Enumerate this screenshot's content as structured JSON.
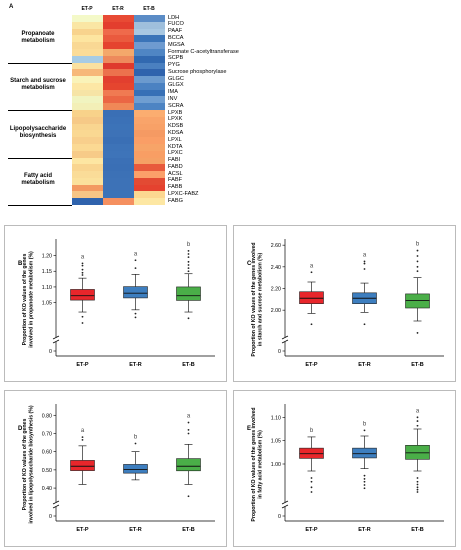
{
  "heatmap": {
    "panel_label": "A",
    "columns": [
      "ET-P",
      "ET-R",
      "ET-B"
    ],
    "genes": [
      "LDH",
      "FUCO",
      "PAAF",
      "BCCA",
      "MGSA",
      "Formate C-acetyltransferase",
      "SCPB",
      "PYG",
      "Sucrose phosphorylase",
      "GLGC",
      "GLGX",
      "IMA",
      "INV",
      "SCRA",
      "LPXB",
      "LPXK",
      "KDSB",
      "KDSA",
      "LPXL",
      "KDTA",
      "LPXC",
      "FABI",
      "FABD",
      "ACSL",
      "FABF",
      "FABB",
      "LPXC-FABZ",
      "FABG"
    ],
    "categories": [
      {
        "label": "Propanoate metabolism",
        "rows": [
          0,
          6
        ]
      },
      {
        "label": "Starch and sucrose metabolism",
        "rows": [
          7,
          13
        ]
      },
      {
        "label": "Lipopolysaccharide biosynthesis",
        "rows": [
          14,
          20
        ]
      },
      {
        "label": "Fatty acid metabolism",
        "rows": [
          21,
          27
        ]
      }
    ],
    "colors": [
      [
        "#f4f9c8",
        "#e84a34",
        "#5b8cc6"
      ],
      [
        "#fae6a4",
        "#e33e2e",
        "#9fbfdc"
      ],
      [
        "#f8d38d",
        "#ef6a4b",
        "#a8c8e2"
      ],
      [
        "#fde5a0",
        "#ea5a3e",
        "#3a74b8"
      ],
      [
        "#f9d894",
        "#e5432f",
        "#6e9bd0"
      ],
      [
        "#fbdc98",
        "#f4a86b",
        "#4f86c4"
      ],
      [
        "#a7cce5",
        "#ee8a5c",
        "#3169b0"
      ],
      [
        "#fae1a0",
        "#df3a2d",
        "#4a80c0"
      ],
      [
        "#f7b879",
        "#ec714d",
        "#2f63ad"
      ],
      [
        "#faf3b9",
        "#e23f2f",
        "#6b9ace"
      ],
      [
        "#fde7a5",
        "#e5452f",
        "#4b82c2"
      ],
      [
        "#f6e4a6",
        "#f07a52",
        "#3770b6"
      ],
      [
        "#f1f4c0",
        "#eb6644",
        "#6f9ed1"
      ],
      [
        "#f3efb7",
        "#f08857",
        "#4d84c3"
      ],
      [
        "#f8d28a",
        "#3a6fb5",
        "#fbad70"
      ],
      [
        "#f6c987",
        "#3b71b7",
        "#f9a46a"
      ],
      [
        "#f9d590",
        "#3c73b8",
        "#f8a167"
      ],
      [
        "#fad892",
        "#3d72b7",
        "#f59a63"
      ],
      [
        "#f8cf8c",
        "#3a6fb5",
        "#fa9e66"
      ],
      [
        "#fbd993",
        "#3d73b8",
        "#f7a468"
      ],
      [
        "#f7cb88",
        "#3e74b9",
        "#f89e64"
      ],
      [
        "#fde6a2",
        "#3b70b6",
        "#f5a165"
      ],
      [
        "#f9d590",
        "#3a6fb5",
        "#e85a3c"
      ],
      [
        "#fadc98",
        "#3c71b6",
        "#fba06a"
      ],
      [
        "#fbe19c",
        "#3d72b7",
        "#e34a33"
      ],
      [
        "#f39a61",
        "#3d72b7",
        "#e5422f"
      ],
      [
        "#f7c585",
        "#3c73b8",
        "#fcd891"
      ],
      [
        "#2f63ad",
        "#f59060",
        "#fde7a3"
      ]
    ]
  },
  "chart_data": [
    {
      "type": "box",
      "panel_label": "B",
      "ylabel": "Proportion of KO values of the genes involved in propanoate metabolism (%)",
      "categories": [
        "ET-P",
        "ET-R",
        "ET-B"
      ],
      "yticks": [
        "1.20",
        "1.15",
        "1.10",
        "1.05",
        "0"
      ],
      "ylim": [
        0.95,
        1.24
      ],
      "axis_break": true,
      "significance": [
        "a",
        "a",
        "b"
      ],
      "colors": [
        "#e8262b",
        "#3d7ebf",
        "#4aae48"
      ],
      "boxes": [
        {
          "whislo": 1.02,
          "q1": 1.058,
          "med": 1.072,
          "q3": 1.092,
          "whishi": 1.128,
          "fliers": [
            1.175,
            1.168,
            1.155,
            1.145,
            1.138,
            1.005,
            0.985
          ]
        },
        {
          "whislo": 1.027,
          "q1": 1.065,
          "med": 1.08,
          "q3": 1.101,
          "whishi": 1.14,
          "fliers": [
            1.185,
            1.16,
            1.015,
            1.003
          ]
        },
        {
          "whislo": 1.02,
          "q1": 1.057,
          "med": 1.072,
          "q3": 1.1,
          "whishi": 1.142,
          "fliers": [
            1.215,
            1.205,
            1.195,
            1.18,
            1.17,
            1.16,
            1.15,
            1.0
          ]
        }
      ]
    },
    {
      "type": "box",
      "panel_label": "C",
      "ylabel": "Proportion of KO values of the genes involved in starch and sucrose metabolism (%)",
      "categories": [
        "ET-P",
        "ET-R",
        "ET-B"
      ],
      "yticks": [
        "2.60",
        "2.40",
        "2.20",
        "2.00",
        "0"
      ],
      "ylim": [
        1.78,
        2.62
      ],
      "axis_break": true,
      "significance": [
        "a",
        "a",
        "b"
      ],
      "colors": [
        "#e8262b",
        "#3d7ebf",
        "#4aae48"
      ],
      "boxes": [
        {
          "whislo": 1.97,
          "q1": 2.06,
          "med": 2.11,
          "q3": 2.17,
          "whishi": 2.26,
          "fliers": [
            2.35,
            1.87
          ]
        },
        {
          "whislo": 1.98,
          "q1": 2.06,
          "med": 2.11,
          "q3": 2.16,
          "whishi": 2.25,
          "fliers": [
            2.45,
            2.43,
            2.38,
            1.87
          ]
        },
        {
          "whislo": 1.9,
          "q1": 2.02,
          "med": 2.09,
          "q3": 2.15,
          "whishi": 2.3,
          "fliers": [
            2.55,
            2.5,
            2.45,
            2.4,
            2.36,
            1.79
          ]
        }
      ]
    },
    {
      "type": "box",
      "panel_label": "D",
      "ylabel": "Proportion of KO values of the genes involved in lipopolysaccharide biosynthesis (%)",
      "categories": [
        "ET-P",
        "ET-R",
        "ET-B"
      ],
      "yticks": [
        "0.80",
        "0.70",
        "0.60",
        "0.50",
        "0.40",
        "0"
      ],
      "ylim": [
        0.34,
        0.84
      ],
      "axis_break": true,
      "significance": [
        "a",
        "b",
        "a"
      ],
      "colors": [
        "#e8262b",
        "#3d7ebf",
        "#4aae48"
      ],
      "boxes": [
        {
          "whislo": 0.42,
          "q1": 0.496,
          "med": 0.52,
          "q3": 0.552,
          "whishi": 0.632,
          "fliers": [
            0.68,
            0.665
          ]
        },
        {
          "whislo": 0.445,
          "q1": 0.482,
          "med": 0.502,
          "q3": 0.53,
          "whishi": 0.6,
          "fliers": [
            0.645
          ]
        },
        {
          "whislo": 0.42,
          "q1": 0.495,
          "med": 0.52,
          "q3": 0.562,
          "whishi": 0.64,
          "fliers": [
            0.76,
            0.72,
            0.7,
            0.355
          ]
        }
      ]
    },
    {
      "type": "box",
      "panel_label": "E",
      "ylabel": "Proportion of KO values of the genes involved in fatty acid metabolism (%)",
      "categories": [
        "ET-P",
        "ET-R",
        "ET-B"
      ],
      "yticks": [
        "1.10",
        "1.05",
        "1.00",
        "0"
      ],
      "ylim": [
        0.925,
        1.12
      ],
      "axis_break": true,
      "significance": [
        "b",
        "b",
        "a"
      ],
      "colors": [
        "#e8262b",
        "#3d7ebf",
        "#4aae48"
      ],
      "boxes": [
        {
          "whislo": 0.985,
          "q1": 1.012,
          "med": 1.022,
          "q3": 1.034,
          "whishi": 1.058,
          "fliers": [
            0.97,
            0.962,
            0.95,
            0.94
          ]
        },
        {
          "whislo": 0.99,
          "q1": 1.013,
          "med": 1.022,
          "q3": 1.034,
          "whishi": 1.06,
          "fliers": [
            1.072,
            0.975,
            0.968,
            0.962,
            0.955,
            0.948
          ]
        },
        {
          "whislo": 0.985,
          "q1": 1.01,
          "med": 1.024,
          "q3": 1.04,
          "whishi": 1.075,
          "fliers": [
            1.1,
            1.092,
            1.082,
            0.97,
            0.962,
            0.956,
            0.95,
            0.945,
            0.94
          ]
        }
      ]
    }
  ]
}
